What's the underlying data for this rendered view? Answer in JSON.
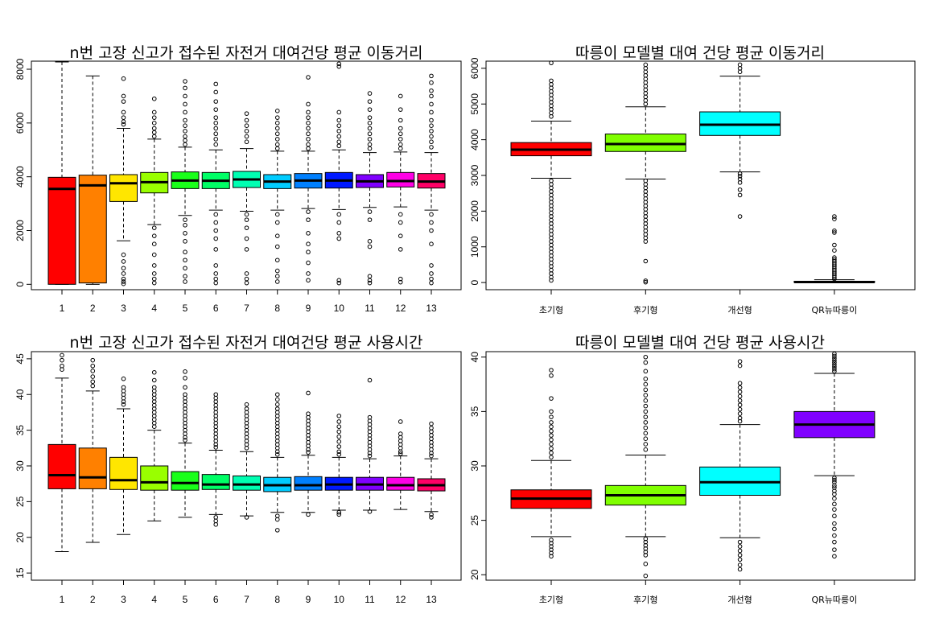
{
  "chart_data": [
    {
      "type": "boxplot",
      "title": "n번 고장 신고가 접수된 자전거 대여건당 평균 이동거리",
      "xlabel": "",
      "ylabel": "",
      "ylim": [
        -200,
        8300
      ],
      "yticks": [
        0,
        2000,
        4000,
        6000,
        8000
      ],
      "categories": [
        "1",
        "2",
        "3",
        "4",
        "5",
        "6",
        "7",
        "8",
        "9",
        "10",
        "11",
        "12",
        "13"
      ],
      "colors": [
        "#FF0000",
        "#FF8000",
        "#FFE600",
        "#99FF00",
        "#1AFF1A",
        "#00FF66",
        "#00FFB2",
        "#00CCFF",
        "#0080FF",
        "#0019FF",
        "#8000FF",
        "#FF00E6",
        "#FF0066"
      ],
      "boxes": [
        {
          "q1": 0,
          "median": 3550,
          "q3": 3980,
          "whisker_low": 0,
          "whisker_high": 8300,
          "outliers": []
        },
        {
          "q1": 50,
          "median": 3680,
          "q3": 4060,
          "whisker_low": 0,
          "whisker_high": 7750,
          "outliers": []
        },
        {
          "q1": 3080,
          "median": 3760,
          "q3": 4080,
          "whisker_low": 1620,
          "whisker_high": 5800,
          "outliers": [
            7650,
            7000,
            6800,
            6400,
            6200,
            6050,
            5950,
            1100,
            850,
            600,
            400,
            200,
            100,
            20
          ]
        },
        {
          "q1": 3400,
          "median": 3800,
          "q3": 4160,
          "whisker_low": 2220,
          "whisker_high": 5400,
          "outliers": [
            6900,
            6400,
            6200,
            6000,
            5800,
            5650,
            5500,
            2100,
            1800,
            1500,
            1100,
            700,
            400,
            200,
            50
          ]
        },
        {
          "q1": 3560,
          "median": 3860,
          "q3": 4180,
          "whisker_low": 2560,
          "whisker_high": 5100,
          "outliers": [
            7550,
            7300,
            7000,
            6700,
            6400,
            6100,
            5900,
            5700,
            5500,
            5350,
            5200,
            2400,
            2200,
            1900,
            1600,
            1200,
            900,
            600,
            300,
            100
          ]
        },
        {
          "q1": 3560,
          "median": 3850,
          "q3": 4160,
          "whisker_low": 2760,
          "whisker_high": 5000,
          "outliers": [
            7450,
            7150,
            6800,
            6500,
            6200,
            6000,
            5800,
            5600,
            5400,
            5200,
            2600,
            2300,
            2000,
            1700,
            1300,
            700,
            400,
            200,
            50
          ]
        },
        {
          "q1": 3600,
          "median": 3900,
          "q3": 4200,
          "whisker_low": 2720,
          "whisker_high": 5050,
          "outliers": [
            6350,
            6100,
            5900,
            5700,
            5500,
            5300,
            2600,
            2400,
            2100,
            1700,
            1300,
            400,
            200,
            50
          ]
        },
        {
          "q1": 3560,
          "median": 3820,
          "q3": 4080,
          "whisker_low": 2760,
          "whisker_high": 4950,
          "outliers": [
            6450,
            6200,
            6000,
            5800,
            5600,
            5400,
            5200,
            5050,
            2600,
            2300,
            1800,
            1400,
            900,
            500,
            300,
            100
          ]
        },
        {
          "q1": 3580,
          "median": 3860,
          "q3": 4120,
          "whisker_low": 2820,
          "whisker_high": 4950,
          "outliers": [
            7700,
            6700,
            6400,
            6200,
            6000,
            5800,
            5600,
            5400,
            5200,
            5050,
            2700,
            2400,
            1900,
            1500,
            1200,
            800,
            400,
            150
          ]
        },
        {
          "q1": 3580,
          "median": 3860,
          "q3": 4160,
          "whisker_low": 2780,
          "whisker_high": 5000,
          "outliers": [
            8200,
            8100,
            6400,
            6100,
            5900,
            5700,
            5500,
            5300,
            5150,
            2600,
            2300,
            1900,
            1700,
            150,
            50
          ]
        },
        {
          "q1": 3600,
          "median": 3830,
          "q3": 4080,
          "whisker_low": 2860,
          "whisker_high": 4900,
          "outliers": [
            7100,
            6800,
            6500,
            6200,
            6000,
            5800,
            5600,
            5400,
            5200,
            5050,
            2700,
            2400,
            1600,
            1400,
            300,
            150,
            50
          ]
        },
        {
          "q1": 3620,
          "median": 3840,
          "q3": 4160,
          "whisker_low": 2880,
          "whisker_high": 4920,
          "outliers": [
            7000,
            6500,
            6100,
            5800,
            5600,
            5400,
            5200,
            5050,
            2600,
            2300,
            1800,
            1300,
            200,
            80
          ]
        },
        {
          "q1": 3580,
          "median": 3820,
          "q3": 4120,
          "whisker_low": 2760,
          "whisker_high": 4900,
          "outliers": [
            7750,
            7500,
            7200,
            7000,
            6700,
            6400,
            6100,
            5900,
            5700,
            5500,
            5300,
            5100,
            2600,
            2300,
            2000,
            1500,
            700,
            400,
            200,
            50
          ]
        }
      ]
    },
    {
      "type": "boxplot",
      "title": "따릉이 모델별 대여 건당 평균 이동거리",
      "xlabel": "",
      "ylabel": "",
      "ylim": [
        -200,
        6200
      ],
      "yticks": [
        0,
        1000,
        2000,
        3000,
        4000,
        5000,
        6000
      ],
      "categories": [
        "초기형",
        "후기형",
        "개선형",
        "QR뉴따릉이"
      ],
      "colors": [
        "#FF0000",
        "#80FF00",
        "#00FFFF",
        "#8000FF"
      ],
      "boxes": [
        {
          "q1": 3550,
          "median": 3720,
          "q3": 3920,
          "whisker_low": 2920,
          "whisker_high": 4520,
          "outliers": [
            6150,
            5650,
            5550,
            5450,
            5350,
            5250,
            5150,
            5050,
            4950,
            4850,
            4750,
            4650,
            2850,
            2750,
            2650,
            2550,
            2450,
            2350,
            2250,
            2150,
            2050,
            1950,
            1850,
            1750,
            1650,
            1550,
            1450,
            1350,
            1250,
            1150,
            1050,
            950,
            850,
            750,
            650,
            550,
            450,
            350,
            250,
            150,
            60
          ]
        },
        {
          "q1": 3670,
          "median": 3880,
          "q3": 4160,
          "whisker_low": 2900,
          "whisker_high": 4920,
          "outliers": [
            6200,
            6100,
            6000,
            5900,
            5800,
            5700,
            5600,
            5500,
            5400,
            5300,
            5200,
            5100,
            5000,
            2850,
            2750,
            2650,
            2550,
            2450,
            2350,
            2250,
            2150,
            2050,
            1950,
            1850,
            1750,
            1650,
            1550,
            1450,
            1350,
            1250,
            1150,
            600,
            50,
            10
          ]
        },
        {
          "q1": 4120,
          "median": 4420,
          "q3": 4780,
          "whisker_low": 3100,
          "whisker_high": 5780,
          "outliers": [
            6200,
            6100,
            6000,
            5900,
            3050,
            2980,
            2900,
            2800,
            2600,
            2450,
            1850
          ]
        },
        {
          "q1": 5,
          "median": 15,
          "q3": 35,
          "whisker_low": 0,
          "whisker_high": 80,
          "outliers": [
            1850,
            1780,
            1450,
            1400,
            1050,
            900,
            700,
            650,
            600,
            550,
            500,
            450,
            400,
            350,
            300,
            250,
            200,
            150,
            100
          ]
        }
      ]
    },
    {
      "type": "boxplot",
      "title": "n번 고장 신고가 접수된 자전거 대여건당 평균 사용시간",
      "xlabel": "",
      "ylabel": "",
      "ylim": [
        14,
        46
      ],
      "yticks": [
        15,
        20,
        25,
        30,
        35,
        40,
        45
      ],
      "categories": [
        "1",
        "2",
        "3",
        "4",
        "5",
        "6",
        "7",
        "8",
        "9",
        "10",
        "11",
        "12",
        "13"
      ],
      "colors": [
        "#FF0000",
        "#FF8000",
        "#FFE600",
        "#99FF00",
        "#1AFF1A",
        "#00FF66",
        "#00FFB2",
        "#00CCFF",
        "#0080FF",
        "#0019FF",
        "#8000FF",
        "#FF00E6",
        "#FF0066"
      ],
      "boxes": [
        {
          "q1": 26.8,
          "median": 28.7,
          "q3": 33.0,
          "whisker_low": 18.0,
          "whisker_high": 42.3,
          "outliers": [
            46.0,
            45.5,
            44.8,
            44.0,
            43.5
          ]
        },
        {
          "q1": 26.8,
          "median": 28.4,
          "q3": 32.5,
          "whisker_low": 19.3,
          "whisker_high": 40.5,
          "outliers": [
            44.8,
            44.0,
            43.3,
            42.5,
            41.8,
            41.2
          ]
        },
        {
          "q1": 26.7,
          "median": 28.0,
          "q3": 31.2,
          "whisker_low": 20.4,
          "whisker_high": 38.0,
          "outliers": [
            42.2,
            41.0,
            40.5,
            40.0,
            39.5,
            39.0,
            38.6
          ]
        },
        {
          "q1": 26.6,
          "median": 27.7,
          "q3": 30.0,
          "whisker_low": 22.3,
          "whisker_high": 35.0,
          "outliers": [
            43.1,
            42.0,
            41.0,
            40.5,
            40.0,
            39.5,
            39.0,
            38.5,
            38.0,
            37.5,
            37.0,
            36.5,
            36.0,
            35.5
          ]
        },
        {
          "q1": 26.6,
          "median": 27.6,
          "q3": 29.2,
          "whisker_low": 22.8,
          "whisker_high": 33.2,
          "outliers": [
            43.2,
            42.3,
            41.0,
            40.0,
            39.5,
            39.0,
            38.5,
            38.0,
            37.5,
            37.0,
            36.5,
            36.0,
            35.5,
            35.0,
            34.5,
            34.0,
            33.6
          ]
        },
        {
          "q1": 26.7,
          "median": 27.4,
          "q3": 28.8,
          "whisker_low": 23.2,
          "whisker_high": 32.2,
          "outliers": [
            40.0,
            39.5,
            39.0,
            38.5,
            38.0,
            37.5,
            37.0,
            36.5,
            36.0,
            35.5,
            35.0,
            34.5,
            34.0,
            33.5,
            33.0,
            32.6,
            22.8,
            22.3,
            21.8
          ]
        },
        {
          "q1": 26.6,
          "median": 27.4,
          "q3": 28.6,
          "whisker_low": 23.0,
          "whisker_high": 32.0,
          "outliers": [
            38.6,
            38.0,
            37.5,
            37.0,
            36.5,
            36.0,
            35.5,
            35.0,
            34.5,
            34.0,
            33.5,
            33.0,
            32.5,
            22.8
          ]
        },
        {
          "q1": 26.4,
          "median": 27.3,
          "q3": 28.4,
          "whisker_low": 23.5,
          "whisker_high": 31.2,
          "outliers": [
            40.0,
            39.3,
            38.6,
            38.0,
            37.5,
            37.0,
            36.5,
            36.0,
            35.5,
            35.0,
            34.5,
            34.0,
            33.5,
            33.0,
            32.5,
            32.0,
            31.6,
            23.0,
            22.5,
            21.0
          ]
        },
        {
          "q1": 26.6,
          "median": 27.3,
          "q3": 28.5,
          "whisker_low": 23.5,
          "whisker_high": 31.5,
          "outliers": [
            40.2,
            37.3,
            36.8,
            36.3,
            35.8,
            35.3,
            34.8,
            34.3,
            33.8,
            33.3,
            32.8,
            32.3,
            31.9,
            23.2
          ]
        },
        {
          "q1": 26.6,
          "median": 27.4,
          "q3": 28.4,
          "whisker_low": 23.8,
          "whisker_high": 31.2,
          "outliers": [
            37.0,
            36.2,
            35.5,
            34.8,
            34.1,
            33.4,
            32.7,
            32.0,
            31.6,
            23.5,
            23.2
          ]
        },
        {
          "q1": 26.6,
          "median": 27.4,
          "q3": 28.4,
          "whisker_low": 23.8,
          "whisker_high": 31.0,
          "outliers": [
            42.0,
            36.8,
            36.3,
            35.8,
            35.3,
            34.8,
            34.3,
            33.8,
            33.3,
            32.8,
            32.3,
            31.8,
            31.4,
            23.6
          ]
        },
        {
          "q1": 26.6,
          "median": 27.3,
          "q3": 28.4,
          "whisker_low": 23.9,
          "whisker_high": 31.4,
          "outliers": [
            36.2,
            34.5,
            34.0,
            33.5,
            33.0,
            32.5,
            32.0,
            31.7
          ]
        },
        {
          "q1": 26.5,
          "median": 27.3,
          "q3": 28.2,
          "whisker_low": 23.6,
          "whisker_high": 31.0,
          "outliers": [
            35.9,
            35.3,
            34.8,
            34.3,
            33.8,
            33.3,
            32.8,
            32.3,
            31.8,
            31.4,
            23.2,
            22.8
          ]
        }
      ]
    },
    {
      "type": "boxplot",
      "title": "따릉이 모델별 대여 건당 평균 사용시간",
      "xlabel": "",
      "ylabel": "",
      "ylim": [
        19.5,
        40.5
      ],
      "yticks": [
        20,
        25,
        30,
        35,
        40
      ],
      "categories": [
        "초기형",
        "후기형",
        "개선형",
        "QR뉴따릉이"
      ],
      "colors": [
        "#FF0000",
        "#80FF00",
        "#00FFFF",
        "#8000FF"
      ],
      "boxes": [
        {
          "q1": 26.1,
          "median": 27.0,
          "q3": 27.8,
          "whisker_low": 23.5,
          "whisker_high": 30.5,
          "outliers": [
            38.8,
            38.3,
            36.2,
            35.0,
            34.5,
            34.0,
            33.6,
            33.2,
            32.8,
            32.4,
            32.0,
            31.6,
            31.2,
            30.8,
            23.2,
            22.9,
            22.6,
            22.3,
            22.0,
            21.7
          ]
        },
        {
          "q1": 26.4,
          "median": 27.3,
          "q3": 28.2,
          "whisker_low": 23.5,
          "whisker_high": 31.0,
          "outliers": [
            40.0,
            39.5,
            38.7,
            38.0,
            37.5,
            37.0,
            36.5,
            36.0,
            35.5,
            35.0,
            34.5,
            34.0,
            33.5,
            33.0,
            32.5,
            32.0,
            31.5,
            23.3,
            23.0,
            22.7,
            22.4,
            22.1,
            21.8,
            21.0,
            19.9
          ]
        },
        {
          "q1": 27.3,
          "median": 28.5,
          "q3": 29.9,
          "whisker_low": 23.4,
          "whisker_high": 33.8,
          "outliers": [
            39.6,
            39.2,
            37.6,
            37.2,
            36.8,
            36.4,
            36.0,
            35.6,
            35.2,
            34.8,
            34.4,
            34.1,
            23.0,
            22.6,
            22.2,
            21.8,
            21.4,
            20.9,
            20.5
          ]
        },
        {
          "q1": 32.6,
          "median": 33.8,
          "q3": 35.0,
          "whisker_low": 29.1,
          "whisker_high": 38.5,
          "outliers": [
            40.5,
            40.3,
            40.1,
            39.9,
            39.7,
            39.5,
            39.3,
            39.1,
            38.9,
            38.7,
            28.9,
            28.7,
            28.5,
            28.2,
            28.0,
            27.7,
            27.4,
            27.0,
            26.5,
            26.0,
            25.4,
            24.7,
            24.2,
            23.6,
            23.0,
            22.3,
            21.7,
            19.5
          ]
        }
      ]
    }
  ]
}
